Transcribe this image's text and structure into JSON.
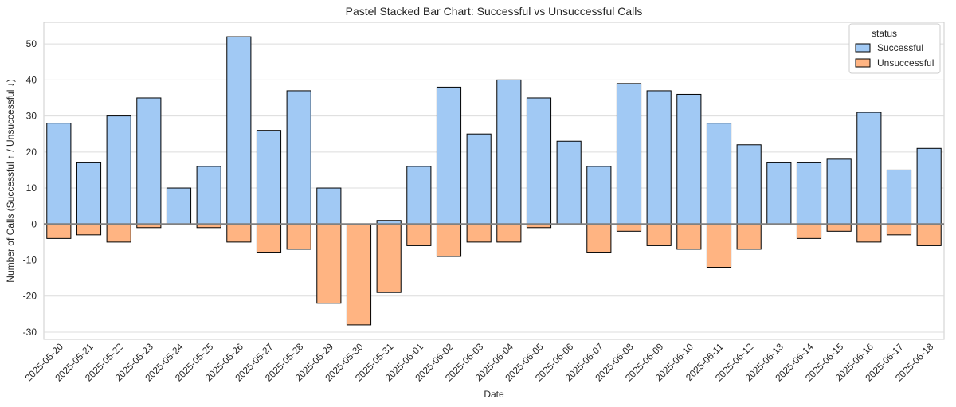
{
  "chart_data": {
    "type": "bar",
    "stacked": true,
    "title": "Pastel Stacked Bar Chart: Successful vs Unsuccessful Calls",
    "xlabel": "Date",
    "ylabel": "Number of Calls (Successful ↑ / Unsuccessful ↓)",
    "ylim": [
      -32,
      56
    ],
    "yticks": [
      -30,
      -20,
      -10,
      0,
      10,
      20,
      30,
      40,
      50
    ],
    "grid": true,
    "legend": {
      "title": "status",
      "position": "top-right"
    },
    "categories": [
      "2025-05-20",
      "2025-05-21",
      "2025-05-22",
      "2025-05-23",
      "2025-05-24",
      "2025-05-25",
      "2025-05-26",
      "2025-05-27",
      "2025-05-28",
      "2025-05-29",
      "2025-05-30",
      "2025-05-31",
      "2025-06-01",
      "2025-06-02",
      "2025-06-03",
      "2025-06-04",
      "2025-06-05",
      "2025-06-06",
      "2025-06-07",
      "2025-06-08",
      "2025-06-09",
      "2025-06-10",
      "2025-06-11",
      "2025-06-12",
      "2025-06-13",
      "2025-06-14",
      "2025-06-15",
      "2025-06-16",
      "2025-06-17",
      "2025-06-18"
    ],
    "series": [
      {
        "name": "Successful",
        "color": "#a1c9f4",
        "values": [
          28,
          17,
          30,
          35,
          10,
          16,
          52,
          26,
          37,
          10,
          0,
          1,
          16,
          38,
          25,
          40,
          35,
          23,
          16,
          39,
          37,
          36,
          28,
          22,
          17,
          17,
          18,
          31,
          15,
          21
        ]
      },
      {
        "name": "Unsuccessful",
        "color": "#ffb482",
        "values": [
          -4,
          -3,
          -5,
          -1,
          0,
          -1,
          -5,
          -8,
          -7,
          -22,
          -28,
          -19,
          -6,
          -9,
          -5,
          -5,
          -1,
          0,
          -8,
          -2,
          -6,
          -7,
          -12,
          -7,
          0,
          -4,
          -2,
          -5,
          -3,
          -6
        ]
      }
    ]
  }
}
